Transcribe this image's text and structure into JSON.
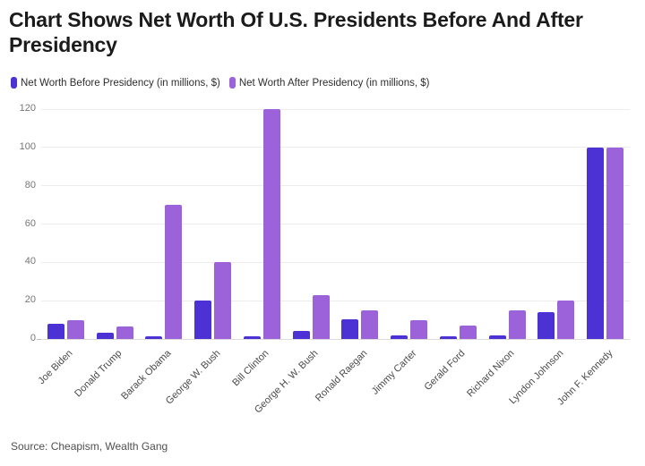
{
  "header": {
    "title": "Chart Shows Net Worth Of U.S. Presidents Before And After Presidency"
  },
  "source": "Source: Cheapism, Wealth Gang",
  "colors": {
    "before_bar": "#4c32d4",
    "after_bar": "#9c62da",
    "gridline": "#ececec",
    "title_text": "#1b1b1b"
  },
  "chart_data": {
    "type": "bar",
    "title": "Chart Shows Net Worth Of U.S. Presidents Before And After Presidency",
    "xlabel": "",
    "ylabel": "",
    "ylim": [
      0,
      120
    ],
    "yticks": [
      0,
      20,
      40,
      60,
      80,
      100,
      120
    ],
    "grid": true,
    "legend_position": "top-left",
    "categories": [
      "Joe Biden",
      "Donald Trump",
      "Barack Obama",
      "George W. Bush",
      "Bill Clinton",
      "George H. W. Bush",
      "Ronald Raegan",
      "Jimmy Carter",
      "Gerald Ford",
      "Richard Nixon",
      "Lyndon Johnson",
      "John F. Kennedy"
    ],
    "series": [
      {
        "name": "Net Worth Before Presidency (in millions, $)",
        "color": "#4c32d4",
        "values": [
          8,
          3.5,
          1.3,
          20,
          1.3,
          4,
          10.5,
          2,
          1.3,
          2,
          14,
          100
        ]
      },
      {
        "name": "Net Worth After Presidency (in millions, $)",
        "color": "#9c62da",
        "values": [
          10,
          6.5,
          70,
          40,
          120,
          23,
          15,
          10,
          7,
          15,
          20,
          100
        ]
      }
    ]
  }
}
